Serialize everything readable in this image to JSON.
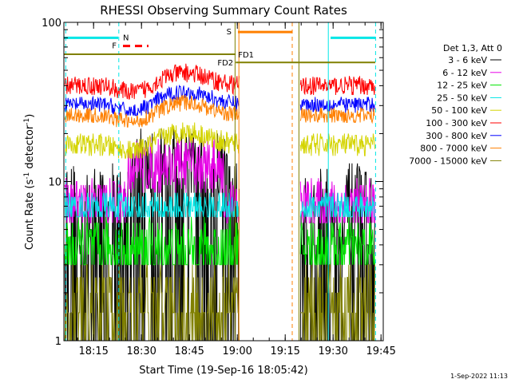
{
  "chart_data": {
    "type": "line",
    "title": "RHESSI Observing Summary Count Rates",
    "xlabel": "Start Time (19-Sep-16 18:05:42)",
    "ylabel": "Count Rate (s⁻¹ detector⁻¹)",
    "ylabel_main": "Count Rate (s",
    "ylabel_sup1": "-1",
    "ylabel_mid": " detector",
    "ylabel_sup2": "-1",
    "ylabel_end": ")",
    "yscale": "log",
    "ylim": [
      1,
      100
    ],
    "xlim_minutes": [
      0,
      100
    ],
    "x_ticks": [
      {
        "label": "18:15",
        "minute": 9.3
      },
      {
        "label": "18:30",
        "minute": 24.3
      },
      {
        "label": "18:45",
        "minute": 39.3
      },
      {
        "label": "19:00",
        "minute": 54.3
      },
      {
        "label": "19:15",
        "minute": 69.3
      },
      {
        "label": "19:30",
        "minute": 84.3
      },
      {
        "label": "19:45",
        "minute": 99.3
      }
    ],
    "y_ticks": [
      {
        "label": "1",
        "value": 1
      },
      {
        "label": "10",
        "value": 10
      },
      {
        "label": "100",
        "value": 100
      }
    ],
    "legend_title": "Det 1,3, Att 0",
    "gaps": [
      [
        55,
        74
      ]
    ],
    "series": [
      {
        "name": "3 - 6 keV",
        "color": "#000000",
        "base": 6.5,
        "noise": 0.3,
        "floor": 1
      },
      {
        "name": "6 - 12 keV",
        "color": "#e600e6",
        "base": 7.0,
        "noise": 0.18,
        "floor": 5.5
      },
      {
        "name": "12 - 25 keV",
        "color": "#00e600",
        "base": 3.7,
        "noise": 0.2,
        "floor": 3.0
      },
      {
        "name": "25 - 50 keV",
        "color": "#00e6e6",
        "base": 6.8,
        "noise": 0.1,
        "floor": 5.8
      },
      {
        "name": "50 - 100 keV",
        "color": "#d4d400",
        "base": 17.0,
        "noise": 0.07,
        "floor": 14
      },
      {
        "name": "100 - 300 keV",
        "color": "#ff0000",
        "base": 40.0,
        "noise": 0.06,
        "floor": 33
      },
      {
        "name": "300 - 800 keV",
        "color": "#0000ff",
        "base": 30.5,
        "noise": 0.05,
        "floor": 26
      },
      {
        "name": "800 - 7000 keV",
        "color": "#ff8000",
        "base": 26.0,
        "noise": 0.05,
        "floor": 22
      },
      {
        "name": "7000 - 15000 keV",
        "color": "#808000",
        "base": 1.5,
        "noise": 0.3,
        "floor": 1
      }
    ],
    "annotations": [
      {
        "label": "N",
        "type": "cyan-bar",
        "x1": 0,
        "x2": 17.0,
        "y": 80,
        "color": "#00e6e6"
      },
      {
        "label": "",
        "type": "cyan-bar",
        "x1": 83.5,
        "x2": 97.5,
        "y": 80,
        "color": "#00e6e6"
      },
      {
        "label": "F",
        "type": "red-dash",
        "x1": 18.5,
        "x2": 26.5,
        "y": 71,
        "color": "#ff0000"
      },
      {
        "label": "S",
        "type": "orange-bar",
        "x1": 54.5,
        "x2": 71.5,
        "y": 87,
        "color": "#ff8000"
      },
      {
        "label": "FD1",
        "type": "olive-line",
        "x1": 0,
        "x2": 53.8,
        "y": 63,
        "color": "#808000"
      },
      {
        "label": "FD2",
        "type": "olive-line",
        "x1": 53.8,
        "x2": 97.5,
        "y": 56,
        "color": "#808000"
      }
    ],
    "vlines": [
      {
        "x": 0.6,
        "color": "#00e6e6",
        "dash": true
      },
      {
        "x": 17.2,
        "color": "#00e6e6",
        "dash": true
      },
      {
        "x": 53.6,
        "color": "#808000",
        "dash": false
      },
      {
        "x": 54.8,
        "color": "#ff8000",
        "dash": false
      },
      {
        "x": 71.5,
        "color": "#ff8000",
        "dash": true
      },
      {
        "x": 73.6,
        "color": "#808000",
        "dash": false
      },
      {
        "x": 82.8,
        "color": "#00e6e6",
        "dash": false
      },
      {
        "x": 97.6,
        "color": "#00e6e6",
        "dash": true
      }
    ]
  },
  "footer": {
    "date_stamp": "1-Sep-2022 11:13"
  }
}
